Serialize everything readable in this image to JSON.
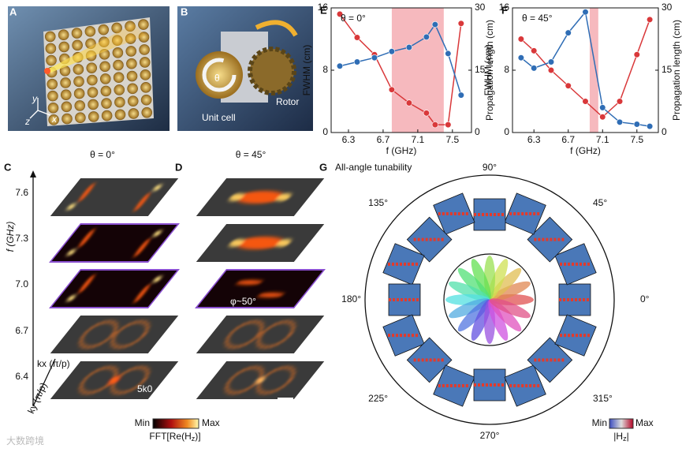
{
  "chart_data": [
    {
      "type": "line",
      "label": "E",
      "annotation": "θ = 0°",
      "xlabel": "f (GHz)",
      "ylabel": "FWHM (cm)",
      "y2label": "Propagation length (cm)",
      "x": [
        6.2,
        6.4,
        6.6,
        6.8,
        7.0,
        7.2,
        7.3,
        7.45,
        7.6
      ],
      "series": [
        {
          "color": "#d9383a",
          "values": [
            15.2,
            12.2,
            10,
            5.5,
            3.8,
            2.5,
            1,
            1,
            14
          ]
        },
        {
          "color": "#2f6db5",
          "axis": "y2",
          "values": [
            16,
            17,
            18,
            19.5,
            20.5,
            23,
            26,
            19,
            9
          ]
        }
      ],
      "xlim": [
        6.1,
        7.72
      ],
      "xticks": [
        6.3,
        6.7,
        7.1,
        7.5
      ],
      "ylim": [
        0,
        16
      ],
      "yticks": [
        0,
        8,
        16
      ],
      "y2lim": [
        0,
        30
      ],
      "y2ticks": [
        0,
        15,
        30
      ],
      "highlight": [
        6.8,
        7.4
      ]
    },
    {
      "type": "line",
      "label": "F",
      "annotation": "θ = 45°",
      "xlabel": "f (GHz)",
      "ylabel": "FWHM (cm)",
      "y2label": "Propagation length (cm)",
      "x": [
        6.15,
        6.3,
        6.5,
        6.7,
        6.9,
        7.1,
        7.3,
        7.5,
        7.65
      ],
      "series": [
        {
          "color": "#d9383a",
          "values": [
            12,
            10.5,
            8,
            6,
            4,
            2,
            4,
            10,
            14.5
          ]
        },
        {
          "color": "#2f6db5",
          "axis": "y2",
          "values": [
            18,
            15.5,
            17,
            24,
            29,
            6,
            2.5,
            2,
            1.5
          ]
        }
      ],
      "xlim": [
        6.05,
        7.75
      ],
      "xticks": [
        6.3,
        6.7,
        7.1,
        7.5
      ],
      "ylim": [
        0,
        16
      ],
      "yticks": [
        0,
        8,
        16
      ],
      "y2lim": [
        0,
        30
      ],
      "y2ticks": [
        0,
        15,
        30
      ],
      "highlight": [
        6.95,
        7.05
      ]
    }
  ],
  "figure": {
    "a": {
      "label": "A",
      "axes": [
        "y",
        "z",
        "x"
      ]
    },
    "b": {
      "label": "B",
      "unit_cell": "Unit cell",
      "rotor": "Rotor",
      "theta": "θ"
    },
    "c": {
      "label": "C",
      "title": "θ = 0°",
      "axis": "f (GHz)",
      "freqs": [
        "7.6",
        "7.3",
        "7.0",
        "6.7",
        "6.4"
      ],
      "kx": "kx (π/p)",
      "ky": "ky (π/p)",
      "scale": "5k0"
    },
    "d": {
      "label": "D",
      "title": "θ = 45°",
      "phi": "φ~50°"
    },
    "cbar1": {
      "min": "Min",
      "max": "Max",
      "title": "FFT[Re(H",
      "sub": "z",
      "end": ")]"
    },
    "g": {
      "label": "G",
      "title": "All-angle tunability",
      "angles": [
        "0°",
        "45°",
        "90°",
        "135°",
        "180°",
        "225°",
        "270°",
        "315°"
      ]
    },
    "cbar2": {
      "min": "Min",
      "max": "Max",
      "title": "|H",
      "sub": "z",
      "end": "|"
    },
    "watermark": "大数跨境"
  }
}
